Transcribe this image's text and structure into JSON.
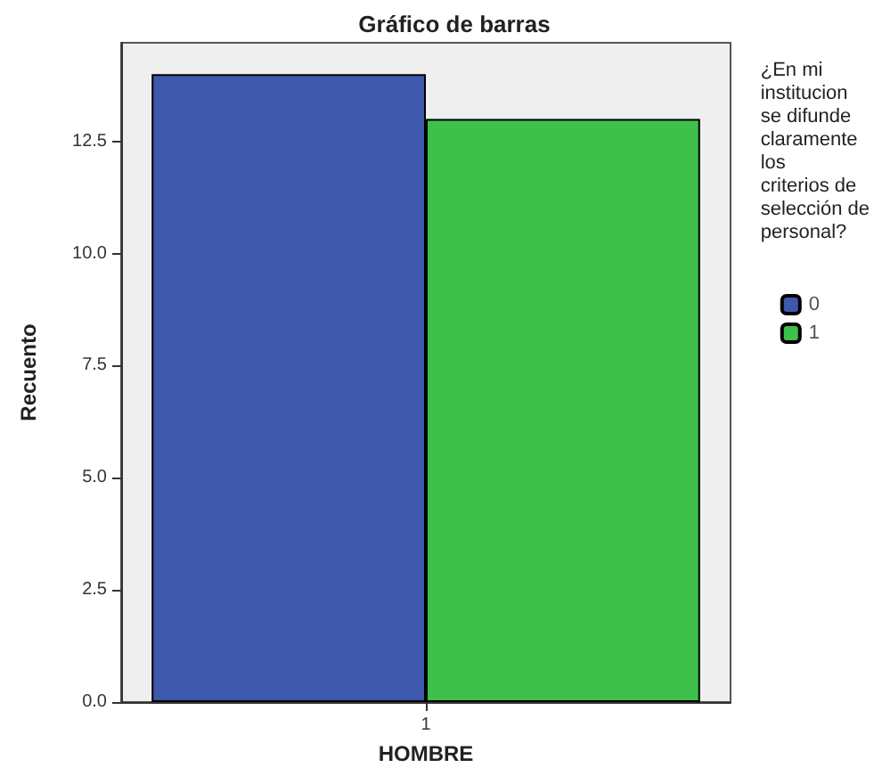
{
  "chart_data": {
    "type": "bar",
    "title": "Gráfico de barras",
    "xlabel": "HOMBRE",
    "ylabel": "Recuento",
    "legend_title": "¿En mi institucion se difunde claramente los criterios de selección de personal?",
    "categories": [
      "1"
    ],
    "series": [
      {
        "name": "0",
        "color": "#3e58ac",
        "values": [
          14
        ]
      },
      {
        "name": "1",
        "color": "#3ec04a",
        "values": [
          13
        ]
      }
    ],
    "ylim": [
      0,
      14.7
    ],
    "yticks": [
      {
        "value": 0,
        "label": "0.0"
      },
      {
        "value": 2.5,
        "label": "2.5"
      },
      {
        "value": 5,
        "label": "5.0"
      },
      {
        "value": 7.5,
        "label": "7.5"
      },
      {
        "value": 10,
        "label": "10.0"
      },
      {
        "value": 12.5,
        "label": "12.5"
      }
    ],
    "grid": false,
    "legend": "right"
  }
}
